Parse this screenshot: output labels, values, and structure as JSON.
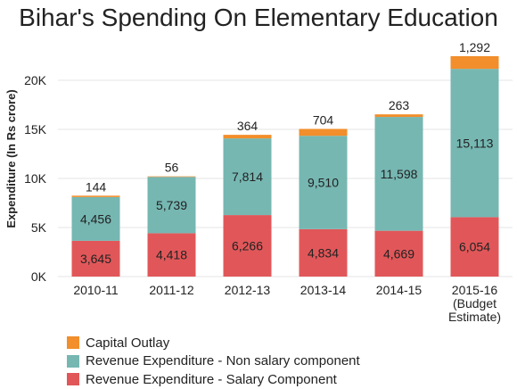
{
  "chart_data": {
    "type": "bar",
    "stacked": true,
    "title": "Bihar's Spending On Elementary Education",
    "ylabel": "Expenditure (In Rs crore)",
    "xlabel": "",
    "ylim": [
      0,
      24000
    ],
    "yticks": [
      0,
      5000,
      10000,
      15000,
      20000
    ],
    "ytick_labels": [
      "0K",
      "5K",
      "10K",
      "15K",
      "20K"
    ],
    "grid": true,
    "legend_position": "bottom-left",
    "categories": [
      [
        "2010-11"
      ],
      [
        "2011-12"
      ],
      [
        "2012-13"
      ],
      [
        "2013-14"
      ],
      [
        "2014-15"
      ],
      [
        "2015-16",
        "(Budget",
        "Estimate)"
      ]
    ],
    "series": [
      {
        "name": "Revenue Expenditure - Salary Component",
        "color": "#e15759",
        "values": [
          3645,
          4418,
          6266,
          4834,
          4669,
          6054
        ],
        "labels": [
          "3,645",
          "4,418",
          "6,266",
          "4,834",
          "4,669",
          "6,054"
        ]
      },
      {
        "name": "Revenue Expenditure - Non salary component",
        "color": "#76b7b2",
        "values": [
          4456,
          5739,
          7814,
          9510,
          11598,
          15113
        ],
        "labels": [
          "4,456",
          "5,739",
          "7,814",
          "9,510",
          "11,598",
          "15,113"
        ]
      },
      {
        "name": "Capital Outlay",
        "color": "#f28e2b",
        "values": [
          144,
          56,
          364,
          704,
          263,
          1292
        ],
        "labels": [
          "144",
          "56",
          "364",
          "704",
          "263",
          "1,292"
        ]
      }
    ],
    "legend_order": [
      "Capital Outlay",
      "Revenue Expenditure - Non salary component",
      "Revenue Expenditure - Salary Component"
    ]
  }
}
